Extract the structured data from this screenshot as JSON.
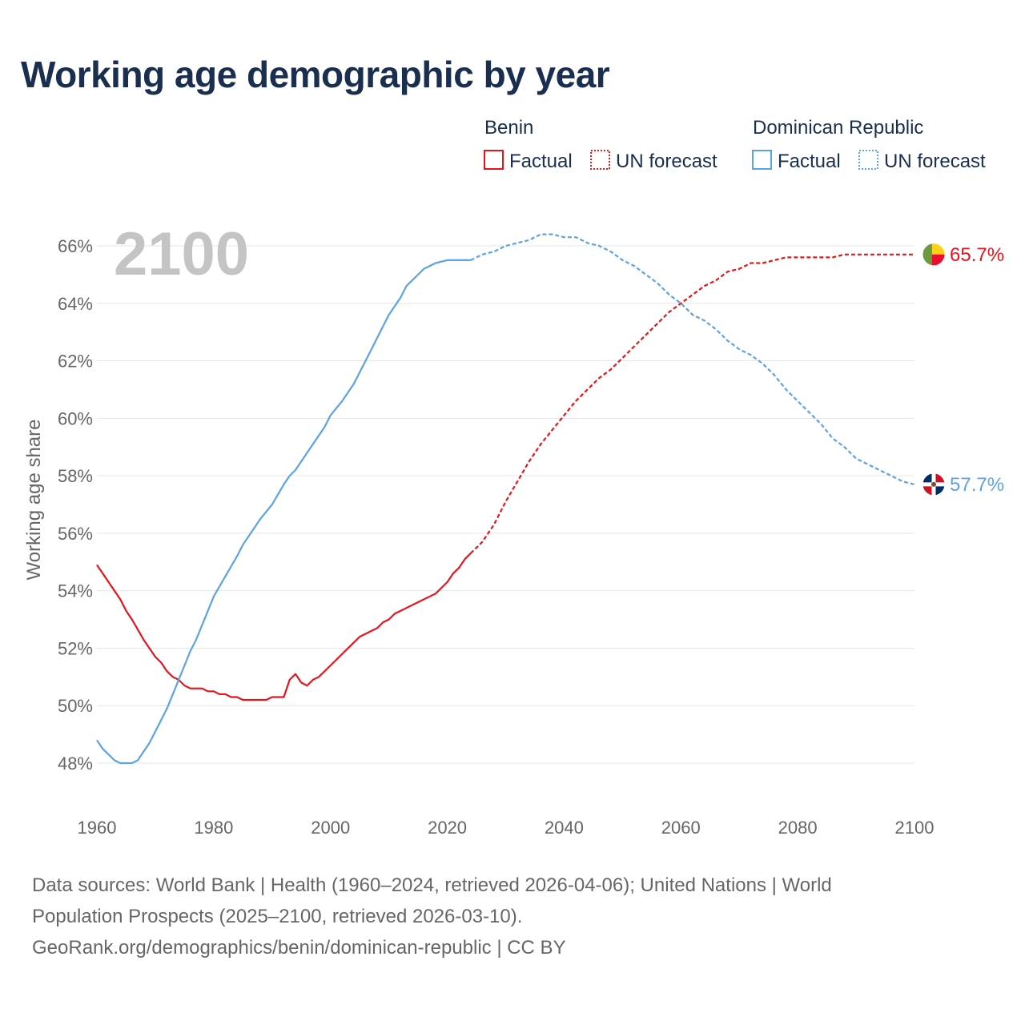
{
  "chart_data": {
    "type": "line",
    "title": "Working age demographic by year",
    "ylabel": "Working age share",
    "xlabel": "",
    "year_label": "2100",
    "xlim": [
      1960,
      2100
    ],
    "ylim": [
      47,
      67.5
    ],
    "x_ticks": [
      1960,
      1980,
      2000,
      2020,
      2040,
      2060,
      2080,
      2100
    ],
    "y_ticks": [
      {
        "value": 48,
        "label": "48%"
      },
      {
        "value": 50,
        "label": "50%"
      },
      {
        "value": 52,
        "label": "52%"
      },
      {
        "value": 54,
        "label": "54%"
      },
      {
        "value": 56,
        "label": "56%"
      },
      {
        "value": 58,
        "label": "58%"
      },
      {
        "value": 60,
        "label": "60%"
      },
      {
        "value": 62,
        "label": "62%"
      },
      {
        "value": 64,
        "label": "64%"
      },
      {
        "value": 66,
        "label": "66%"
      }
    ],
    "legend": {
      "placement": "top-right",
      "groups": [
        {
          "name": "Benin",
          "factual_label": "Factual",
          "forecast_label": "UN forecast",
          "color": "#e8141c"
        },
        {
          "name": "Dominican Republic",
          "factual_label": "Factual",
          "forecast_label": "UN forecast",
          "color": "#5ba3e6"
        }
      ]
    },
    "series": [
      {
        "name": "Benin",
        "color": "#e8141c",
        "end_label": "65.7%",
        "factual": [
          [
            1960,
            54.9
          ],
          [
            1962,
            54.3
          ],
          [
            1964,
            53.7
          ],
          [
            1965,
            53.3
          ],
          [
            1966,
            53.0
          ],
          [
            1968,
            52.3
          ],
          [
            1970,
            51.7
          ],
          [
            1971,
            51.5
          ],
          [
            1972,
            51.2
          ],
          [
            1973,
            51.0
          ],
          [
            1974,
            50.9
          ],
          [
            1975,
            50.7
          ],
          [
            1976,
            50.6
          ],
          [
            1978,
            50.6
          ],
          [
            1979,
            50.5
          ],
          [
            1980,
            50.5
          ],
          [
            1981,
            50.4
          ],
          [
            1982,
            50.4
          ],
          [
            1983,
            50.3
          ],
          [
            1984,
            50.3
          ],
          [
            1985,
            50.2
          ],
          [
            1987,
            50.2
          ],
          [
            1989,
            50.2
          ],
          [
            1990,
            50.3
          ],
          [
            1992,
            50.3
          ],
          [
            1993,
            50.9
          ],
          [
            1994,
            51.1
          ],
          [
            1995,
            50.8
          ],
          [
            1996,
            50.7
          ],
          [
            1997,
            50.9
          ],
          [
            1998,
            51.0
          ],
          [
            2000,
            51.4
          ],
          [
            2002,
            51.8
          ],
          [
            2004,
            52.2
          ],
          [
            2005,
            52.4
          ],
          [
            2007,
            52.6
          ],
          [
            2008,
            52.7
          ],
          [
            2009,
            52.9
          ],
          [
            2010,
            53.0
          ],
          [
            2011,
            53.2
          ],
          [
            2013,
            53.4
          ],
          [
            2015,
            53.6
          ],
          [
            2017,
            53.8
          ],
          [
            2018,
            53.9
          ],
          [
            2020,
            54.3
          ],
          [
            2021,
            54.6
          ],
          [
            2022,
            54.8
          ],
          [
            2023,
            55.1
          ],
          [
            2024,
            55.3
          ]
        ],
        "forecast": [
          [
            2024,
            55.3
          ],
          [
            2026,
            55.7
          ],
          [
            2028,
            56.3
          ],
          [
            2030,
            57.1
          ],
          [
            2032,
            57.8
          ],
          [
            2034,
            58.5
          ],
          [
            2036,
            59.1
          ],
          [
            2038,
            59.6
          ],
          [
            2040,
            60.1
          ],
          [
            2042,
            60.6
          ],
          [
            2044,
            61.0
          ],
          [
            2046,
            61.4
          ],
          [
            2048,
            61.7
          ],
          [
            2050,
            62.1
          ],
          [
            2052,
            62.5
          ],
          [
            2054,
            62.9
          ],
          [
            2056,
            63.3
          ],
          [
            2058,
            63.7
          ],
          [
            2060,
            64.0
          ],
          [
            2062,
            64.3
          ],
          [
            2064,
            64.6
          ],
          [
            2066,
            64.8
          ],
          [
            2068,
            65.1
          ],
          [
            2070,
            65.2
          ],
          [
            2072,
            65.4
          ],
          [
            2074,
            65.4
          ],
          [
            2076,
            65.5
          ],
          [
            2078,
            65.6
          ],
          [
            2082,
            65.6
          ],
          [
            2086,
            65.6
          ],
          [
            2088,
            65.7
          ],
          [
            2100,
            65.7
          ]
        ]
      },
      {
        "name": "Dominican Republic",
        "color": "#5ba3e6",
        "end_label": "57.7%",
        "factual": [
          [
            1960,
            48.8
          ],
          [
            1961,
            48.5
          ],
          [
            1962,
            48.3
          ],
          [
            1963,
            48.1
          ],
          [
            1964,
            48.0
          ],
          [
            1966,
            48.0
          ],
          [
            1967,
            48.1
          ],
          [
            1968,
            48.4
          ],
          [
            1969,
            48.7
          ],
          [
            1970,
            49.1
          ],
          [
            1971,
            49.5
          ],
          [
            1972,
            49.9
          ],
          [
            1973,
            50.4
          ],
          [
            1974,
            50.9
          ],
          [
            1975,
            51.4
          ],
          [
            1976,
            51.9
          ],
          [
            1977,
            52.3
          ],
          [
            1978,
            52.8
          ],
          [
            1979,
            53.3
          ],
          [
            1980,
            53.8
          ],
          [
            1982,
            54.5
          ],
          [
            1984,
            55.2
          ],
          [
            1985,
            55.6
          ],
          [
            1986,
            55.9
          ],
          [
            1987,
            56.2
          ],
          [
            1988,
            56.5
          ],
          [
            1990,
            57.0
          ],
          [
            1992,
            57.7
          ],
          [
            1993,
            58.0
          ],
          [
            1994,
            58.2
          ],
          [
            1996,
            58.8
          ],
          [
            1998,
            59.4
          ],
          [
            1999,
            59.7
          ],
          [
            2000,
            60.1
          ],
          [
            2002,
            60.6
          ],
          [
            2003,
            60.9
          ],
          [
            2004,
            61.2
          ],
          [
            2005,
            61.6
          ],
          [
            2006,
            62.0
          ],
          [
            2007,
            62.4
          ],
          [
            2008,
            62.8
          ],
          [
            2009,
            63.2
          ],
          [
            2010,
            63.6
          ],
          [
            2011,
            63.9
          ],
          [
            2012,
            64.2
          ],
          [
            2013,
            64.6
          ],
          [
            2014,
            64.8
          ],
          [
            2015,
            65.0
          ],
          [
            2016,
            65.2
          ],
          [
            2017,
            65.3
          ],
          [
            2018,
            65.4
          ],
          [
            2020,
            65.5
          ],
          [
            2022,
            65.5
          ],
          [
            2024,
            65.5
          ]
        ],
        "forecast": [
          [
            2024,
            65.5
          ],
          [
            2026,
            65.7
          ],
          [
            2028,
            65.8
          ],
          [
            2030,
            66.0
          ],
          [
            2032,
            66.1
          ],
          [
            2034,
            66.2
          ],
          [
            2036,
            66.4
          ],
          [
            2038,
            66.4
          ],
          [
            2040,
            66.3
          ],
          [
            2042,
            66.3
          ],
          [
            2044,
            66.1
          ],
          [
            2046,
            66.0
          ],
          [
            2048,
            65.8
          ],
          [
            2050,
            65.5
          ],
          [
            2052,
            65.3
          ],
          [
            2054,
            65.0
          ],
          [
            2056,
            64.7
          ],
          [
            2058,
            64.3
          ],
          [
            2060,
            64.0
          ],
          [
            2062,
            63.6
          ],
          [
            2064,
            63.4
          ],
          [
            2066,
            63.1
          ],
          [
            2068,
            62.7
          ],
          [
            2070,
            62.4
          ],
          [
            2072,
            62.2
          ],
          [
            2074,
            61.9
          ],
          [
            2076,
            61.5
          ],
          [
            2078,
            61.0
          ],
          [
            2080,
            60.6
          ],
          [
            2082,
            60.2
          ],
          [
            2084,
            59.8
          ],
          [
            2086,
            59.3
          ],
          [
            2088,
            59.0
          ],
          [
            2090,
            58.6
          ],
          [
            2092,
            58.4
          ],
          [
            2094,
            58.2
          ],
          [
            2096,
            58.0
          ],
          [
            2098,
            57.8
          ],
          [
            2100,
            57.7
          ]
        ]
      }
    ]
  },
  "footer": {
    "line1": "Data sources: World Bank | Health (1960–2024, retrieved 2026-04-06); United Nations | World",
    "line2": "Population Prospects (2025–2100, retrieved 2026-03-10).",
    "line3": "GeoRank.org/demographics/benin/dominican-republic | CC BY"
  }
}
